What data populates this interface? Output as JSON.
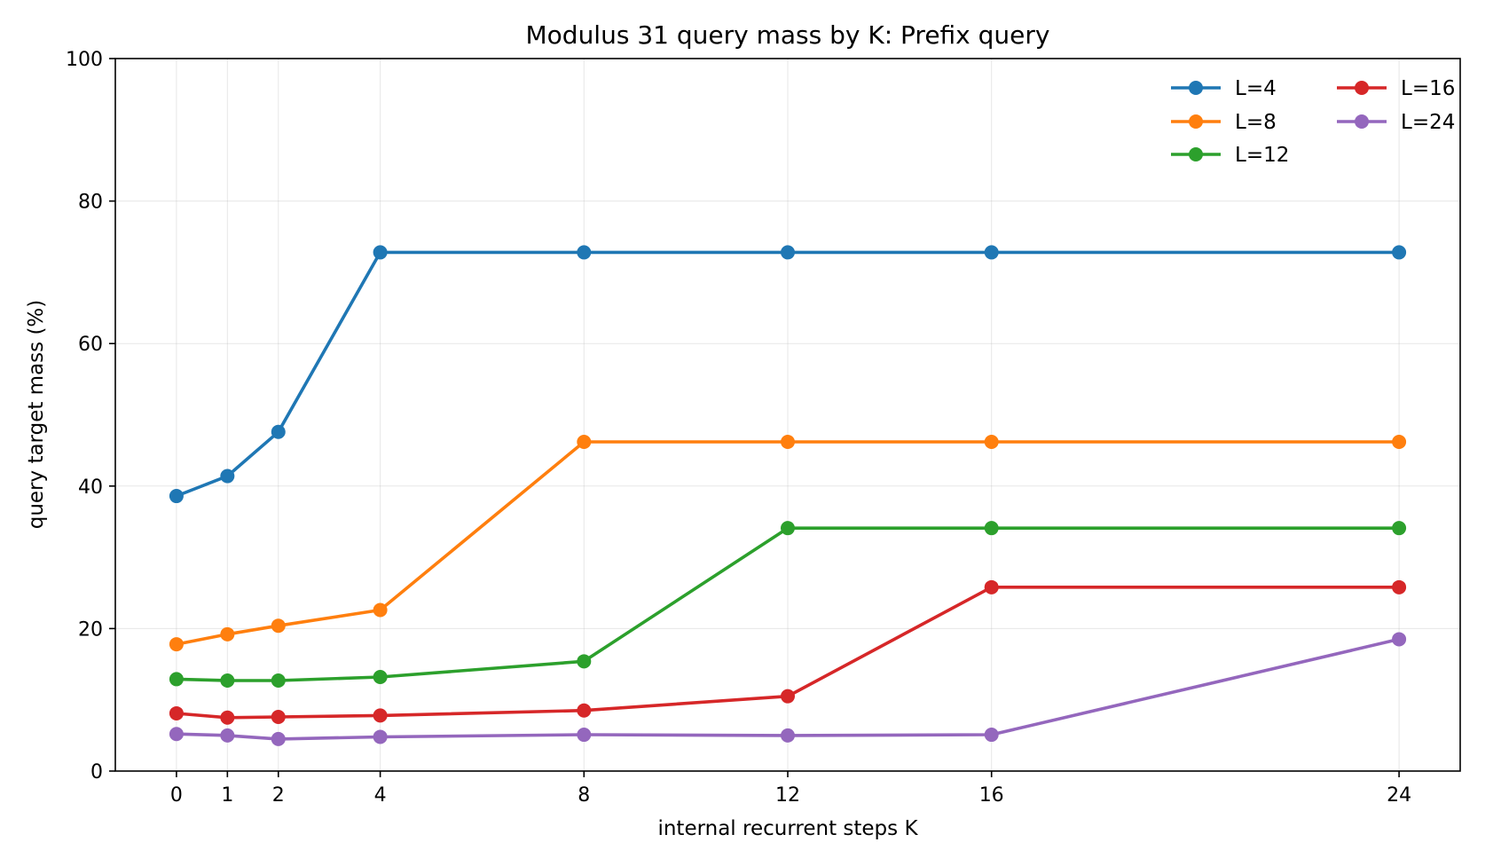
{
  "chart_data": {
    "type": "line",
    "title": "Modulus 31 query mass by K: Prefix query",
    "xlabel": "internal recurrent steps K",
    "ylabel": "query target mass (%)",
    "x": [
      0,
      1,
      2,
      4,
      8,
      12,
      16,
      24
    ],
    "xticks": [
      "0",
      "1",
      "2",
      "4",
      "8",
      "12",
      "16",
      "24"
    ],
    "xlim": [
      -1.2,
      25.2
    ],
    "ylim": [
      0,
      100
    ],
    "yticks": [
      "0",
      "20",
      "40",
      "60",
      "80",
      "100"
    ],
    "ytick_values": [
      0,
      20,
      40,
      60,
      80,
      100
    ],
    "grid": true,
    "legend_position": "top-right",
    "legend_columns": 2,
    "series": [
      {
        "name": "L=4",
        "color": "#1f77b4",
        "values": [
          38.6,
          41.4,
          47.6,
          72.8,
          72.8,
          72.8,
          72.8,
          72.8
        ]
      },
      {
        "name": "L=8",
        "color": "#ff7f0e",
        "values": [
          17.8,
          19.2,
          20.4,
          22.6,
          46.2,
          46.2,
          46.2,
          46.2
        ]
      },
      {
        "name": "L=12",
        "color": "#2ca02c",
        "values": [
          12.9,
          12.7,
          12.7,
          13.2,
          15.4,
          34.1,
          34.1,
          34.1
        ]
      },
      {
        "name": "L=16",
        "color": "#d62728",
        "values": [
          8.1,
          7.5,
          7.6,
          7.8,
          8.5,
          10.5,
          25.8,
          25.8
        ]
      },
      {
        "name": "L=24",
        "color": "#9467bd",
        "values": [
          5.2,
          5.0,
          4.5,
          4.8,
          5.1,
          5.0,
          5.1,
          18.5
        ]
      }
    ]
  }
}
